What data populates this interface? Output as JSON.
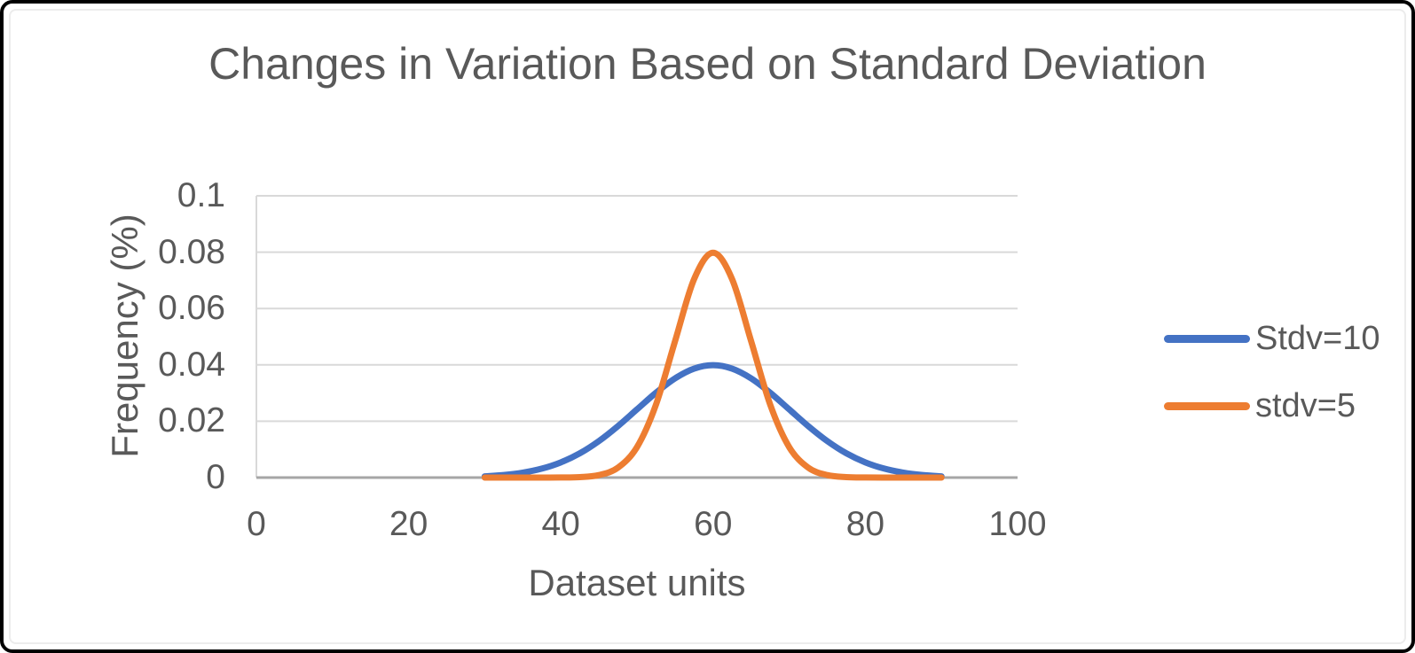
{
  "window": {
    "background": "#ffffff",
    "border_color": "#000000"
  },
  "chart_data": {
    "type": "line",
    "title": "Changes in Variation Based on Standard Deviation",
    "xlabel": "Dataset units",
    "ylabel": "Frequency (%)",
    "xlim": [
      0,
      100
    ],
    "ylim": [
      0,
      0.1
    ],
    "x_ticks": [
      0,
      20,
      40,
      60,
      80,
      100
    ],
    "y_ticks": [
      0,
      0.02,
      0.04,
      0.06,
      0.08,
      0.1
    ],
    "grid": true,
    "legend_position": "right",
    "text_color": "#595959",
    "grid_color": "#D9D9D9",
    "axis_color": "#A6A6A6",
    "series": [
      {
        "name": "Stdv=10",
        "color": "#4472C4",
        "x": [
          30,
          32.5,
          35,
          37.5,
          40,
          42.5,
          45,
          47.5,
          50,
          52.5,
          55,
          57.5,
          60,
          62.5,
          65,
          67.5,
          70,
          72.5,
          75,
          77.5,
          80,
          82.5,
          85,
          87.5,
          90
        ],
        "y": [
          0.000443,
          0.00091,
          0.001753,
          0.003174,
          0.005399,
          0.008624,
          0.012952,
          0.018265,
          0.024197,
          0.030114,
          0.035207,
          0.038667,
          0.039894,
          0.038667,
          0.035207,
          0.030114,
          0.024197,
          0.018265,
          0.012952,
          0.008624,
          0.005399,
          0.003174,
          0.001753,
          0.00091,
          0.000443
        ]
      },
      {
        "name": "stdv=5",
        "color": "#ED7D31",
        "x": [
          30,
          32.5,
          35,
          37.5,
          40,
          42.5,
          45,
          47.5,
          50,
          52.5,
          55,
          57.5,
          60,
          62.5,
          65,
          67.5,
          70,
          72.5,
          75,
          77.5,
          80,
          82.5,
          85,
          87.5,
          90
        ],
        "y": [
          0,
          0,
          0,
          3e-06,
          2.7e-05,
          0.000174,
          0.000886,
          0.003506,
          0.010798,
          0.025903,
          0.048394,
          0.070413,
          0.079788,
          0.070413,
          0.048394,
          0.025903,
          0.010798,
          0.003506,
          0.000886,
          0.000174,
          2.7e-05,
          3e-06,
          0,
          0,
          0
        ]
      }
    ]
  }
}
